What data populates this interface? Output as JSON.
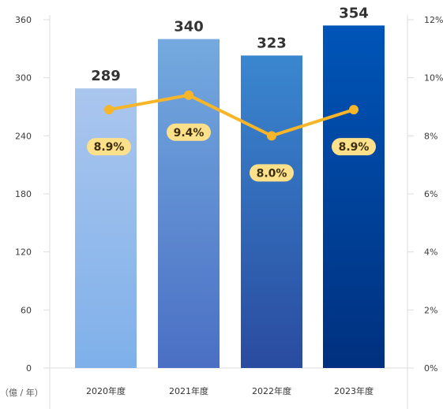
{
  "chart_data": {
    "type": "bar",
    "categories": [
      "2020年度",
      "2021年度",
      "2022年度",
      "2023年度"
    ],
    "series": [
      {
        "values": [
          289,
          340,
          323,
          354
        ],
        "axis": "left",
        "type": "bar"
      },
      {
        "values": [
          8.9,
          9.4,
          8.0,
          8.9
        ],
        "axis": "right",
        "type": "line"
      }
    ],
    "bar_labels": [
      "289",
      "340",
      "323",
      "354"
    ],
    "line_labels": [
      "8.9%",
      "9.4%",
      "8.0%",
      "8.9%"
    ],
    "left_axis": {
      "ticks": [
        "0",
        "60",
        "120",
        "180",
        "240",
        "300",
        "360"
      ],
      "ylim": [
        0,
        360
      ],
      "unit": "（億 / 年）"
    },
    "right_axis": {
      "ticks": [
        "0%",
        "2%",
        "4%",
        "6%",
        "8%",
        "10%",
        "12%"
      ],
      "ylim": [
        0,
        12
      ]
    },
    "grid": false,
    "legend": "none",
    "colors": {
      "bar_top": [
        "#aac6ee",
        "#74aadf",
        "#3a87cf",
        "#0055b8"
      ],
      "bar_bottom": [
        "#7fb0ea",
        "#4a6fc4",
        "#2a4ba0",
        "#00307f"
      ],
      "line": "#f7b529",
      "label_bg": "#fde08a",
      "axis": "#dddddd"
    }
  }
}
